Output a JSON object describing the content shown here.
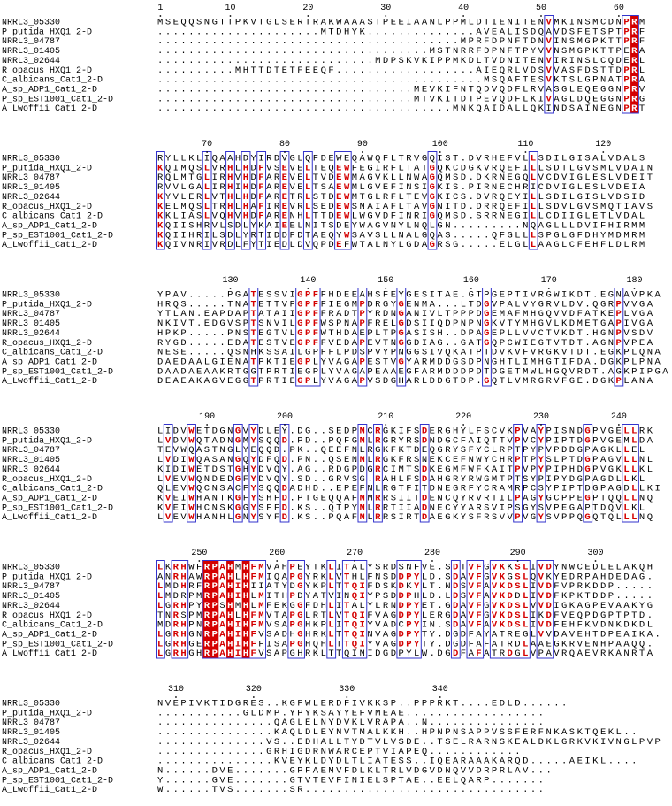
{
  "names": [
    "NRRL3_05330",
    "P_putida_HXQ1_2-D",
    "NRRL3_04787",
    "NRRL3_01405",
    "NRRL3_02644",
    "R_opacus_HXQ1_2-D",
    "C_albicans_Cat1_2-D",
    "A_sp_ADP1_Cat1_2-D",
    "P_sp_EST1001_Cat1_2-D",
    "A_Lwoffii_Cat1_2-D"
  ],
  "blocks": [
    {
      "ruler": [
        1,
        10,
        20,
        30,
        40,
        50,
        60
      ],
      "sequences": [
        "MSEQQSNGTTPKVTGLSERTRAKWAAASTPEEIAANLPPMLDTIENITENVMKINSMCDNPRM",
        ".....................MTDHYK..............AVEALISDQAVDSFETSPTPRF",
        ".......................................MPRFDPNFTDNVINSMGPKTTPRF",
        "...................................MSTNRRFDPNFTPYVVNSMGPKTTPERA",
        "............................MDPSKVKIPPMKDLTVDNITENVIRINSLCQDERL",
        "..........MHTTDTETFEEQF..................AIEQRLVDSVVASFDSTTDPRL",
        "..........................................MSQAFTESVKTSLGPNATPRA",
        ".................................MEVKIFNTQDVQDFLRVASGLEQEGGNPRV",
        ".................................MTVKITDTPEVQDFLKIVAGLDQEGGNPRG",
        "......................................MNKQAIDALLQKINDSAINEGNPRT"
      ]
    },
    {
      "ruler": [
        70,
        80,
        90,
        100,
        110,
        120
      ],
      "sequences": [
        "RYLLKLIQAAHDYIRDVGLQFDEWEQAWQFLTRVGQIST.DVRHEFVLLSDILGISALVDALS",
        "KQIMQSLVRHLHDFVSEVELTEQEWFEGIRFLTATGQKCDGKVRQEFILLSDTLGVSMLVDAIN",
        "RQLMTGLIRHVHDFAREVELTVDEWMAGVKLLNWAGQMSD.DKRNEGQLVCDVIGLESLVDEIT",
        "RVVLGALIRHIHDFAREVELTSAEWMLGVEFINSIGKIS.PIRNECHRICDVIGLESLVDEIA",
        "KYVLERLVTHLHDFARETRLSTDEWMTGLRFLTEVGKICS.DVRQEYILLSDILGISLVDSID",
        "KELMQSLTRHLHAFIREVRLSEDEWSNAIAFLTAVGNITD.DRRQEFILLSDVLGVSMQTIAVS",
        "KKLIASLVQHVHDFARENHLTTDEWLWGVDFINRIGQMSD.SRRNEGILLCDIIGLETLVDAL",
        "KQIISHRVLSDLYKAIEELNITSDEYWAGVNYLNQLGN.........NQAGLLLDVIFHIRMM",
        "KQIIHRILSDLYRTIDDFDTAEQYWSAVSLLNALGQAS.....QFGLLLSPGLGFDHYMDMRM",
        "KQIVNRIVRDLFYTIEDLDVQPDEFWTALNYLGDAGRSG.....ELGLLAAGLCFEHFLDLRM"
      ]
    },
    {
      "ruler": [
        130,
        140,
        150,
        160,
        170,
        180
      ],
      "sequences": [
        "YPAV.....PGATESSVIGPFFHDEEAHSFEYGESITAE.GTPGEPTIVRGWIKDT.EGNAVPKA",
        "HRQS.....TNATETTVFGPFFIEGMPDRGYGENMA...LTDGVPALVYGRVLDV.QGRPVVGA",
        "YTLAN.EAPDAPTATAIIGPFFRADTPYRDNGANIVLTPPPDGEMAFMHGQVVDFATKEPLVGA",
        "NKIVT.EDGVSPTSNVILGPFWSPNAPFRELGDSIIQDPNPNGKVTYMHGVLKDMETGAPIVGA",
        "HPKP.....PNSTEGTVLGPFWTHDAEPLTPGASISH..DPAGEPLLVVCTVKDT.HGNPVSDV",
        "RYGD.....EDATESTVEGPFFVEDAPEVTNGGDIAG..GATGQPCWIEGTVTDT.AGNPVPEA",
        "NESE.....QSNHKSSAILGPFFLPDSPVYPNGGSIVQKATPTDVKVFVRGKVTDT.EGKPLQNA",
        "DAEDAALGIENATPKTIEGPLYVAGAPESTVGYARMDDGSDPNGHTLIMHGTIFDA.DGKPLPNA",
        "DAADAEAAKRTGGTPRTIEGPLYVAGAPEAAEGFARMDDDPDTDGETMWLHGQVRDT.AGKPIPGA",
        "DEAEAKAGVEGGTPRTIEGPLYVAGAPVSDGHARLDDGTDP.GQTLVMRGRVFGE.DGKPLANA"
      ]
    },
    {
      "ruler": [
        190,
        200,
        210,
        220,
        230,
        240
      ],
      "sequences": [
        "LIDVWETDGNGVYDLEY.DG..SEDPNCRGKIFSDERGHYLFSCVKPVAYPISNDGPVGELLRK",
        "LVDVWQTADNGMYSQQD.PD..PQFGNLRGRYRSDNDGCFAIQTTVPVCYPIPTDGPVGEMLDA",
        "TEVWQASTNGLYEQQD.PK..QEEFNLRGKFKTDEQGRYSFYCLRPTPYPVPDDGPAGKLLEL",
        "LVDIWQASANGQYDFQD.PN..QSENNLRGKFRSNEKCEFNWYCHRPTPYSLPTDGPAGVLLNL",
        "KIDIWETDSTGHYDVQY.AG..RDGPDGRCIMTSDKEGMFWFKAITPVPYPIPHDGPVGKLLKL",
        "LVEVWQNDEDGFYDVQY.SD..GRVSG.RAHLFSDAHGRYRWGMTPTSYPIPYDGPAGDLLKL",
        "QLEVWQCNSACFYSQQDADHD..EPEFNLRGTFITDNEGRFYCRAMRPCSYPIPTDGPAGDLLKI",
        "KVEIWHANTKGFYSHFD.PTGEQQAFNMRRSIITDENCQYRVRTILPAGYGCPPEGPTQQLLNQ",
        "KVEIWHCNSKGGYSFFD.KS..QTPYNLRRTIIADNECYYARSVIPSGYSVPEGAPTDQVLKL",
        "LVEVWHANHLGNYSYFD.KS..PQAFNLRRSIRTDAEGKYSFRSVVPVGYSVPPQGQTQLLLNQ"
      ]
    },
    {
      "ruler": [
        250,
        260,
        270,
        280,
        290,
        300
      ],
      "sequences": [
        "LKRHWFRPAHMHFMVAHPEYTKLITALYSRDSNFVE.SDTVFGVKKSLIVDYNWCEDLELAKQH",
        "ANRHAWRPAHLHFMIQAPGYRKLVTHLFNSDDPYLD.SDAVFGVKGSLQVKYEDRPAHDEDAG.",
        "LMDHRFRPAHIHIIATYDGYKPLTTQIFDSKDKYLT.NDSVFAVKDSLIVDFVPRKDDP.....",
        "LMDRPMRPAHIHLMITHPDYATVINQIYPSDDPHLD.LDSVFAVKDDLIVDFKPKTDDP.....",
        "LGRHPYRPSHMHLMFEKGGFDHLITALYLRNDPYET.GDAVFGVKDSLVVDIGKAGPEVAAKYG",
        "TNRSPMRPAHLHFMVTAPGLRTLVTQIFVAGDPYLERGDAVFGVKDSLIKDFVEQPDGPTPTD.",
        "MDRHPNRPAHIHFMVSAPGHKPLITQIYVADCPYIN.SDAVFAVKDSLIVDFEHFKVDNKDKDL",
        "LGRHGNRPAHIHFVSADHGHRKLTTQINVAGDPYTY.DGDFAYATREGLVVDAVEHTDPEAIKA.",
        "LGRHGERPAHIHFFISAPGHQHLTTQIYVAGDPYTY.DGDFAFATRDLAAEGKRVENHPAAQQ.",
        "LGRHGHRPAHIHFVSAPGHRKLTTQINIDGDPYLW.DGDFAFATRDGLVPAVRQAEVRKANRTA"
      ]
    },
    {
      "ruler": [
        310,
        320,
        330,
        340
      ],
      "sequences": [
        "NVEPIVKTIDGRES..KGFWLERDFIVKKSP..PPPRKT....EDLD......",
        "...........GLDMP.YPYKSAYYEFVMEAE..................",
        "...............QAGLELNYDVKLVRAPA..N...............",
        "...............KAQLDLEYNVTMALKKH..HPNPNSAPPVSSFERFNKASKTQEKL..",
        "..............VS..EDHALLTYDTVLVSDE..TSELRARNSKEALDKLGRKVKIVNGLPVP",
        "..............GRHIGDRNWARCEPTVIAPEQ............",
        "...............KVEYKLDYDLTLIATESS..IQEARAAAKARQD.....AEIKL....",
        "N......DVE.......GPFAEMVFDLKLTRLVDGVDNQVVDRPRLAV...",
        "Y......GVE.......GTVTEVFINIELSPTAE..EELQARP.......",
        "W......TVS.......SR..............................."
      ]
    }
  ]
}
